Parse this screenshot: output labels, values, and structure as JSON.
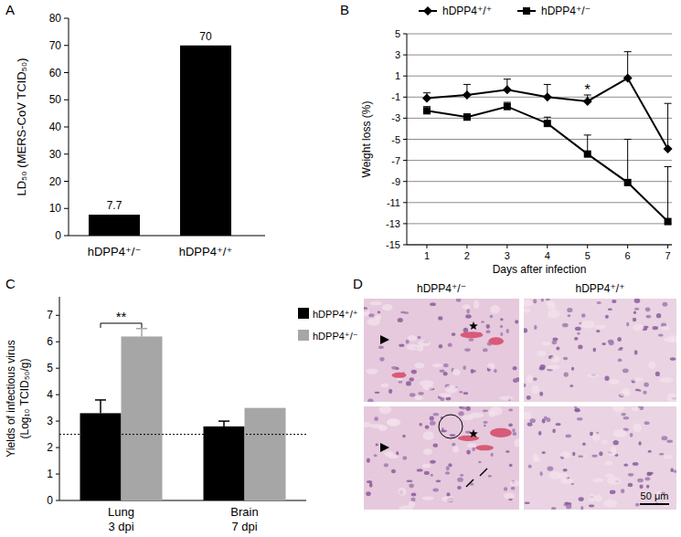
{
  "chart_data": [
    {
      "panel": "A",
      "type": "bar",
      "y_label": "LD₅₀ (MERS-CoV TCID₅₀)",
      "categories": [
        "hDPP4⁺/⁻",
        "hDPP4⁺/⁺"
      ],
      "values": [
        7.7,
        70
      ],
      "color": "#000000",
      "ylim": [
        0,
        80
      ],
      "yticks": [
        0,
        10,
        20,
        30,
        40,
        50,
        60,
        70,
        80
      ],
      "data_labels": true
    },
    {
      "panel": "B",
      "type": "line",
      "x_label": "Days after infection",
      "y_label": "Weight loss (%)",
      "x": [
        1,
        2,
        3,
        4,
        5,
        6,
        7
      ],
      "series": [
        {
          "name": "hDPP4⁺/⁺",
          "color": "#000000",
          "marker": "diamond",
          "values": [
            -1.1,
            -0.8,
            -0.3,
            -1.0,
            -1.4,
            0.8,
            -5.9
          ],
          "errors": [
            0.5,
            1.0,
            1.0,
            1.2,
            0.6,
            2.5,
            4.3
          ]
        },
        {
          "name": "hDPP4⁺/⁻",
          "color": "#000000",
          "marker": "square",
          "values": [
            -2.3,
            -2.9,
            -1.9,
            -3.5,
            -6.4,
            -9.1,
            -12.8
          ],
          "errors": [
            0.4,
            0.3,
            0.4,
            0.6,
            1.8,
            4.1,
            5.2
          ]
        }
      ],
      "xlim": [
        0.5,
        7.1
      ],
      "xticks": [
        1,
        2,
        3,
        4,
        5,
        6,
        7
      ],
      "ylim": [
        -15,
        5
      ],
      "yticks": [
        5,
        3,
        1,
        -1,
        -3,
        -5,
        -7,
        -9,
        -11,
        -13,
        -15
      ],
      "grid": true,
      "legend": "top",
      "annotations": [
        {
          "text": "*",
          "x": 5,
          "y": -0.3
        }
      ]
    },
    {
      "panel": "C",
      "type": "bar",
      "y_label": [
        "Yields of infectious virus",
        "(Log₁₀ TCID₅₀/g)"
      ],
      "categories": [
        "Lung\n3 dpi",
        "Brain\n7 dpi"
      ],
      "series": [
        {
          "name": "hDPP4⁺/⁺",
          "color": "#000000",
          "values": [
            3.3,
            2.8
          ],
          "errors": [
            0.5,
            0.2
          ]
        },
        {
          "name": "hDPP4⁺/⁻",
          "color": "#a6a6a6",
          "values": [
            6.2,
            3.5
          ],
          "errors": [
            0.3,
            null
          ]
        }
      ],
      "ylim": [
        0,
        7.7
      ],
      "yticks": [
        0,
        1,
        2,
        3,
        4,
        5,
        6,
        7
      ],
      "detection_limit": 2.5,
      "legend": "right",
      "annotations": [
        {
          "text": "**",
          "category": 0,
          "y": 6.7
        }
      ]
    }
  ],
  "histology": {
    "panel": "D",
    "columns": [
      "hDPP4⁺/⁻",
      "hDPP4⁺/⁺"
    ],
    "scale_bar": "50 μm"
  }
}
